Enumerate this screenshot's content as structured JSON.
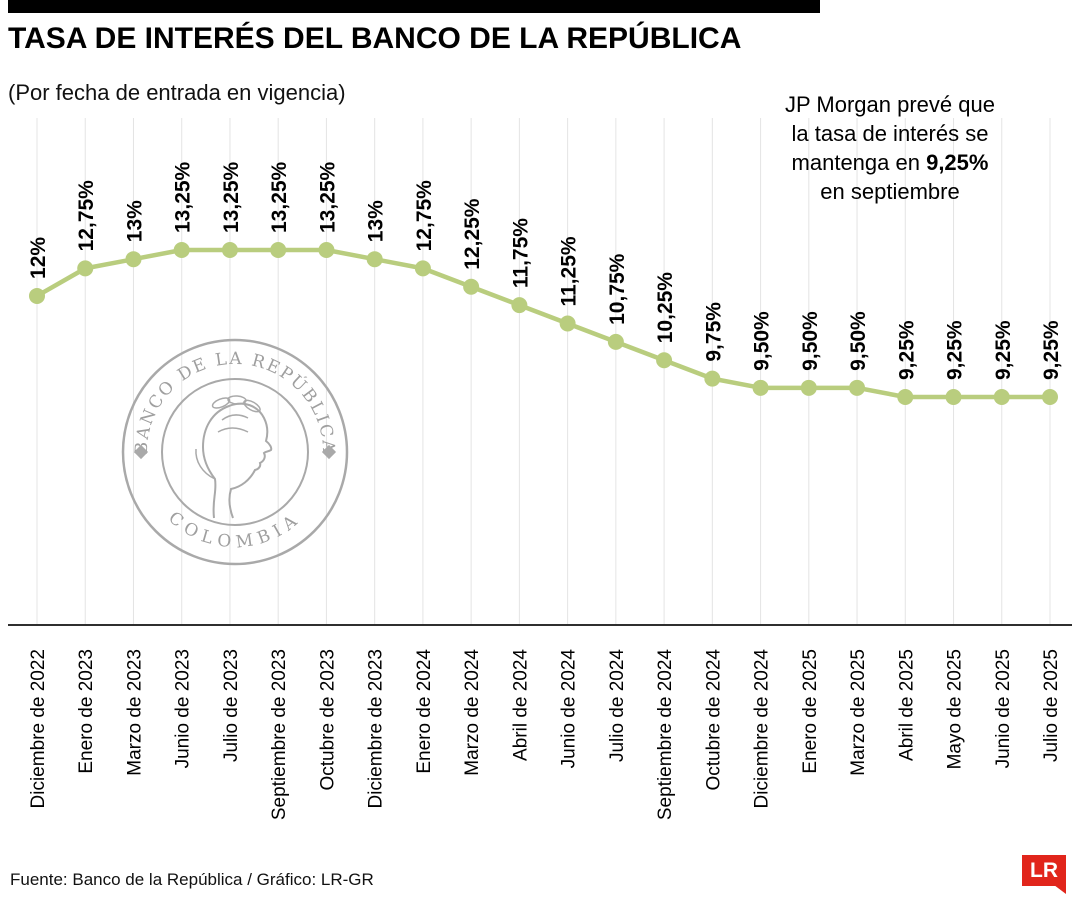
{
  "header": {
    "title": "TASA DE INTERÉS DEL BANCO DE LA REPÚBLICA",
    "subtitle": "(Por fecha de entrada en vigencia)"
  },
  "annotation": {
    "line1": "JP Morgan prevé que",
    "line2": "la tasa de interés se",
    "line3_prefix": "mantenga en ",
    "line3_bold": "9,25%",
    "line4": "en septiembre"
  },
  "watermark": {
    "ring_top": "BANCO DE LA REPÚBLICA",
    "ring_bottom": "COLOMBIA"
  },
  "chart_data": {
    "type": "line",
    "title": "TASA DE INTERÉS DEL BANCO DE LA REPÚBLICA",
    "subtitle": "(Por fecha de entrada en vigencia)",
    "categories": [
      "Diciembre de 2022",
      "Enero de 2023",
      "Marzo de 2023",
      "Junio de 2023",
      "Julio de 2023",
      "Septiembre de 2023",
      "Octubre de 2023",
      "Diciembre de 2023",
      "Enero de 2024",
      "Marzo de 2024",
      "Abril de 2024",
      "Junio de 2024",
      "Julio de 2024",
      "Septiembre de 2024",
      "Octubre de 2024",
      "Diciembre de 2024",
      "Enero de 2025",
      "Marzo de 2025",
      "Abril de 2025",
      "Mayo de 2025",
      "Junio de 2025",
      "Julio de 2025"
    ],
    "values": [
      12,
      12.75,
      13,
      13.25,
      13.25,
      13.25,
      13.25,
      13,
      12.75,
      12.25,
      11.75,
      11.25,
      10.75,
      10.25,
      9.75,
      9.5,
      9.5,
      9.5,
      9.25,
      9.25,
      9.25,
      9.25
    ],
    "value_labels": [
      "12%",
      "12,75%",
      "13%",
      "13,25%",
      "13,25%",
      "13,25%",
      "13,25%",
      "13%",
      "12,75%",
      "12,25%",
      "11,75%",
      "11,25%",
      "10,75%",
      "10,25%",
      "9,75%",
      "9,50%",
      "9,50%",
      "9,50%",
      "9,25%",
      "9,25%",
      "9,25%",
      "9,25%"
    ],
    "ylim": [
      9.0,
      13.5
    ],
    "grid": "vertical",
    "line_color": "#b9cd7e",
    "xlabel": "",
    "ylabel": ""
  },
  "footer": {
    "source": "Fuente: Banco de la República / Gráfico: LR-GR",
    "logo_text": "LR"
  }
}
